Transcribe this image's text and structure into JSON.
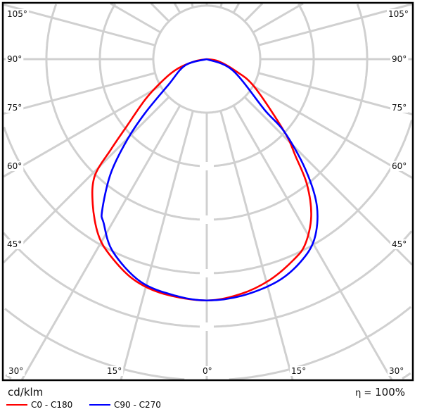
{
  "chart_data": {
    "type": "polar",
    "unit_label": "cd/klm",
    "efficiency_label": "η = 100%",
    "efficiency_symbol": "η =",
    "efficiency_value": "100%",
    "radial_scale_note": "rings unlabeled; intensity values given in ring units",
    "angle_ticks_left": [
      "105°",
      "90°",
      "75°",
      "60°",
      "45°",
      "30°",
      "15°"
    ],
    "angle_ticks_bottom": [
      "30°",
      "15°",
      "0°",
      "15°",
      "30°"
    ],
    "angle_ticks_right": [
      "105°",
      "90°",
      "75°",
      "60°",
      "45°"
    ],
    "grid": true,
    "legend_position": "bottom-left",
    "series": [
      {
        "name": "C0 - C180",
        "color": "#ff0000",
        "gamma": [
          -90,
          -80,
          -72,
          -64.6,
          -57,
          -50,
          -46.7,
          -43.8,
          -38.2,
          -31.7,
          -26.2,
          -18.4,
          -10.4,
          0,
          8.5,
          16,
          23.3,
          28,
          33.6,
          38.6,
          42.4,
          46.9,
          59.8,
          68,
          80,
          90
        ],
        "intensity": [
          0,
          0.22,
          0.57,
          0.89,
          1.36,
          1.96,
          2.47,
          3.03,
          3.45,
          3.86,
          4.09,
          4.34,
          4.46,
          4.51,
          4.43,
          4.29,
          4.09,
          3.92,
          3.53,
          3.01,
          2.47,
          1.99,
          1.03,
          0.57,
          0.22,
          0
        ]
      },
      {
        "name": "C90 - C270",
        "color": "#0000ff",
        "gamma": [
          -90,
          -74,
          -56.3,
          -48.9,
          -44.5,
          -40,
          -34.6,
          -32.2,
          -26.1,
          -16.6,
          -7.5,
          0,
          8.5,
          17.6,
          24.7,
          30.9,
          36.9,
          41.9,
          46.9,
          48.7,
          66.6,
          90
        ],
        "intensity": [
          0,
          0.42,
          0.86,
          1.53,
          2.14,
          2.8,
          3.45,
          3.62,
          4.0,
          4.34,
          4.46,
          4.51,
          4.47,
          4.36,
          4.18,
          3.92,
          3.43,
          2.76,
          1.99,
          1.45,
          0.53,
          0
        ]
      }
    ]
  }
}
